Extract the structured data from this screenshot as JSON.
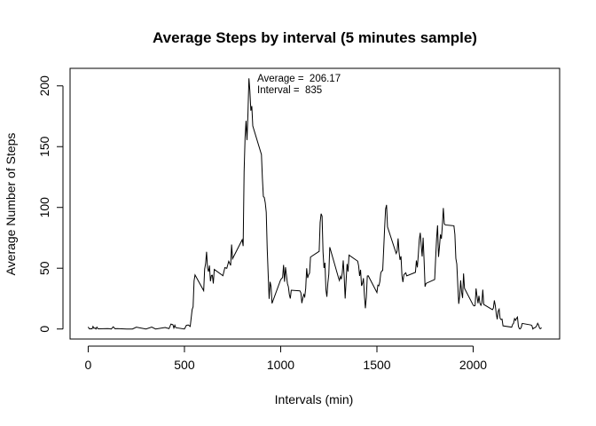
{
  "chart_data": {
    "type": "line",
    "title": "Average Steps by interval (5 minutes sample)",
    "x_label": "Intervals (min)",
    "y_label": "Average Number of Steps",
    "annotations": [
      "Average =  206.17",
      "Interval =  835"
    ],
    "color": "#000000",
    "xlim": [
      -94.2,
      2449.2
    ],
    "ylim": [
      -8.25,
      214.42
    ],
    "xticks": [
      0,
      500,
      1000,
      1500,
      2000
    ],
    "yticks": [
      0,
      50,
      100,
      150,
      200
    ],
    "x": [
      0,
      5,
      10,
      15,
      20,
      25,
      30,
      35,
      40,
      45,
      50,
      55,
      100,
      110,
      120,
      130,
      140,
      150,
      200,
      230,
      250,
      300,
      330,
      350,
      400,
      420,
      430,
      440,
      445,
      450,
      455,
      500,
      510,
      520,
      530,
      540,
      545,
      550,
      555,
      600,
      605,
      610,
      615,
      620,
      625,
      630,
      635,
      640,
      645,
      650,
      655,
      700,
      710,
      720,
      730,
      740,
      745,
      750,
      800,
      805,
      810,
      815,
      820,
      825,
      830,
      835,
      840,
      845,
      850,
      855,
      900,
      905,
      910,
      915,
      920,
      925,
      930,
      935,
      940,
      945,
      950,
      955,
      1000,
      1010,
      1015,
      1020,
      1025,
      1030,
      1035,
      1040,
      1045,
      1050,
      1055,
      1100,
      1105,
      1110,
      1115,
      1120,
      1125,
      1130,
      1135,
      1140,
      1145,
      1150,
      1155,
      1200,
      1205,
      1210,
      1215,
      1220,
      1225,
      1230,
      1235,
      1240,
      1245,
      1250,
      1255,
      1300,
      1305,
      1310,
      1315,
      1320,
      1325,
      1330,
      1335,
      1340,
      1345,
      1350,
      1355,
      1400,
      1405,
      1410,
      1415,
      1420,
      1425,
      1430,
      1435,
      1440,
      1445,
      1450,
      1455,
      1500,
      1505,
      1510,
      1515,
      1520,
      1525,
      1530,
      1535,
      1540,
      1545,
      1550,
      1555,
      1600,
      1605,
      1610,
      1615,
      1620,
      1625,
      1630,
      1635,
      1640,
      1645,
      1650,
      1655,
      1700,
      1705,
      1710,
      1715,
      1720,
      1725,
      1730,
      1735,
      1740,
      1745,
      1750,
      1755,
      1800,
      1805,
      1810,
      1815,
      1820,
      1825,
      1830,
      1835,
      1840,
      1845,
      1850,
      1855,
      1900,
      1905,
      1910,
      1915,
      1920,
      1925,
      1930,
      1935,
      1940,
      1945,
      1950,
      1955,
      2000,
      2005,
      2010,
      2015,
      2020,
      2025,
      2030,
      2035,
      2040,
      2045,
      2050,
      2055,
      2100,
      2105,
      2110,
      2115,
      2120,
      2125,
      2130,
      2135,
      2140,
      2145,
      2150,
      2155,
      2200,
      2205,
      2210,
      2215,
      2220,
      2225,
      2230,
      2235,
      2240,
      2245,
      2250,
      2255,
      2300,
      2305,
      2310,
      2315,
      2320,
      2325,
      2330,
      2335,
      2340,
      2345,
      2350,
      2355
    ],
    "values": [
      1.7,
      0.3,
      0.1,
      0.2,
      0.1,
      2.1,
      0.5,
      0.9,
      0,
      1.5,
      0.3,
      0.1,
      0.3,
      0.2,
      0,
      1.8,
      0.2,
      0.3,
      0,
      0,
      1.5,
      0,
      1.6,
      0,
      1.2,
      0.3,
      4.1,
      3.5,
      0.8,
      3.1,
      1.1,
      0,
      3,
      3.3,
      2.1,
      16,
      18.3,
      39.5,
      44.5,
      31.5,
      49.3,
      53.8,
      63.5,
      50,
      47.1,
      52.2,
      39.3,
      44,
      44.2,
      37.4,
      49,
      43.8,
      50.5,
      49.9,
      55.7,
      52.3,
      69.5,
      57.8,
      73.4,
      68.2,
      129.4,
      157.5,
      171.2,
      155.4,
      177.3,
      206.17,
      195.9,
      179.6,
      183.4,
      167,
      143.5,
      124,
      109.1,
      108.1,
      103.7,
      95.97,
      66.2,
      45.2,
      24.8,
      38.8,
      34.98,
      21.1,
      40.6,
      42.4,
      52.7,
      38.9,
      50.8,
      44.3,
      37.4,
      34.7,
      28.3,
      25.1,
      31.9,
      31.4,
      29.7,
      21.3,
      25.5,
      28.4,
      26.5,
      33.4,
      49.98,
      42,
      44.6,
      46,
      59.2,
      63.9,
      87.7,
      94.8,
      92.8,
      63.4,
      50.2,
      54.5,
      32.4,
      26.5,
      37.7,
      45.1,
      67.3,
      42.3,
      39.9,
      43.3,
      40.98,
      46.2,
      56.4,
      42.8,
      25.1,
      39.97,
      53.5,
      47.3,
      60.8,
      55.8,
      51.96,
      43.6,
      48.7,
      35.5,
      37.5,
      41.8,
      27.5,
      17.1,
      26.1,
      43.6,
      43.8,
      30,
      36.1,
      35.5,
      38.8,
      45.96,
      47.8,
      48.1,
      65.3,
      82.9,
      98.7,
      102.1,
      83.96,
      62.1,
      64.1,
      74.5,
      63.2,
      56.9,
      59.8,
      43.9,
      38.6,
      44.7,
      45.5,
      46.2,
      43.7,
      46.6,
      56.3,
      50.7,
      61.2,
      73.4,
      79.1,
      68.9,
      59.7,
      75.1,
      56.5,
      34.8,
      37.5,
      40.7,
      58,
      74.7,
      85.3,
      59.3,
      67.8,
      77.7,
      74.2,
      85.3,
      99.5,
      86.6,
      85.6,
      84.9,
      77.8,
      58,
      53.4,
      36.3,
      20.7,
      27.4,
      40,
      30.2,
      25.5,
      45.7,
      33.5,
      19.6,
      19,
      19.3,
      33.3,
      26.8,
      21.2,
      27.3,
      21.3,
      19.5,
      21.3,
      32.3,
      20.2,
      15.9,
      17.2,
      23.5,
      19.2,
      12.5,
      8,
      14.7,
      16.3,
      8.7,
      7.8,
      8.1,
      2.6,
      1.5,
      3.7,
      4.8,
      8.5,
      7.1,
      8.7,
      9.8,
      2.2,
      0.3,
      0.1,
      1.6,
      4.6,
      3.3,
      2.8,
      0,
      0.8,
      1,
      1.6,
      2.6,
      4.7,
      3.3,
      0.6,
      0.2,
      1.1
    ]
  }
}
